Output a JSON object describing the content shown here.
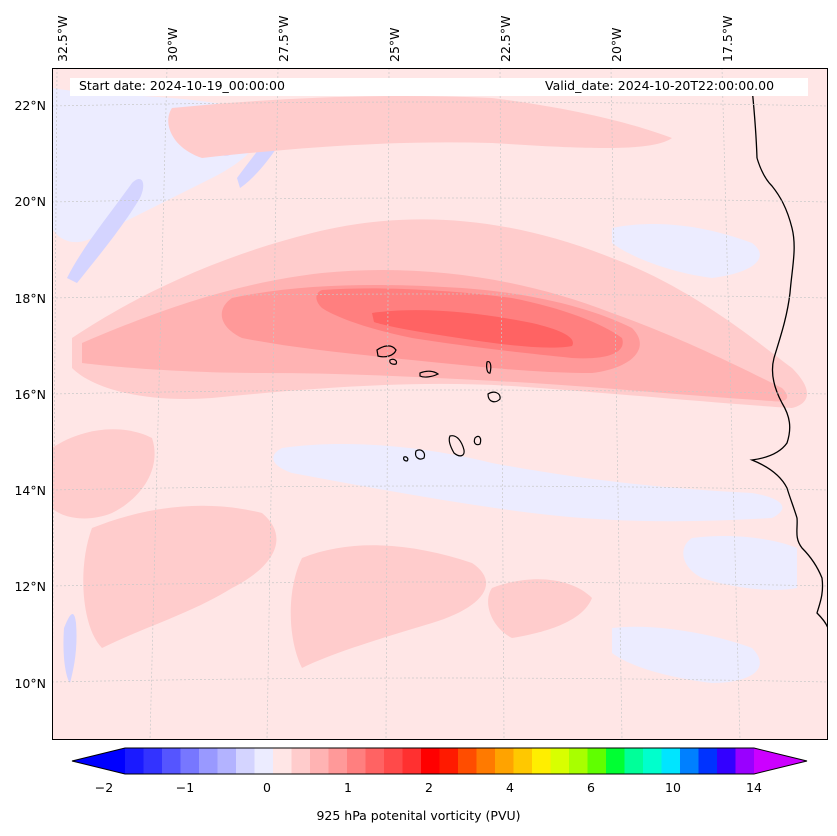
{
  "map": {
    "start_date_text": "Start date: 2024-10-19_00:00:00",
    "valid_date_text": "Valid_date: 2024-10-20T22:00:00.00",
    "lon_labels": [
      "32.5°W",
      "30°W",
      "27.5°W",
      "25°W",
      "22.5°W",
      "20°W",
      "17.5°W"
    ],
    "lat_labels": [
      "22°N",
      "20°N",
      "18°N",
      "16°N",
      "14°N",
      "12°N",
      "10°N"
    ],
    "field": "925 hPa potential vorticity",
    "region": "Cabo Verde islands and West African coast"
  },
  "colorbar": {
    "label": "925 hPa potenital vorticity (PVU)",
    "tick_labels": [
      "−2",
      "−1",
      "0",
      "1",
      "2",
      "4",
      "6",
      "10",
      "14"
    ],
    "colors": [
      "#1a1aff",
      "#3333ff",
      "#5555ff",
      "#7777ff",
      "#9999ff",
      "#b3b3ff",
      "#d4d4ff",
      "#ececff",
      "#ffe6e6",
      "#ffcccc",
      "#ffb3b3",
      "#ff9999",
      "#ff7f7f",
      "#ff6363",
      "#ff4a4a",
      "#ff3030",
      "#ff0000",
      "#ff1a00",
      "#ff4d00",
      "#ff7a00",
      "#ffa300",
      "#ffc800",
      "#ffee00",
      "#d8ff00",
      "#a8ff00",
      "#60ff00",
      "#00ff33",
      "#00ff99",
      "#00ffcc",
      "#00e5ff",
      "#0080ff",
      "#0033ff",
      "#3300ff",
      "#9900ff"
    ],
    "under_color": "#0000ff",
    "over_color": "#cc00ff"
  }
}
